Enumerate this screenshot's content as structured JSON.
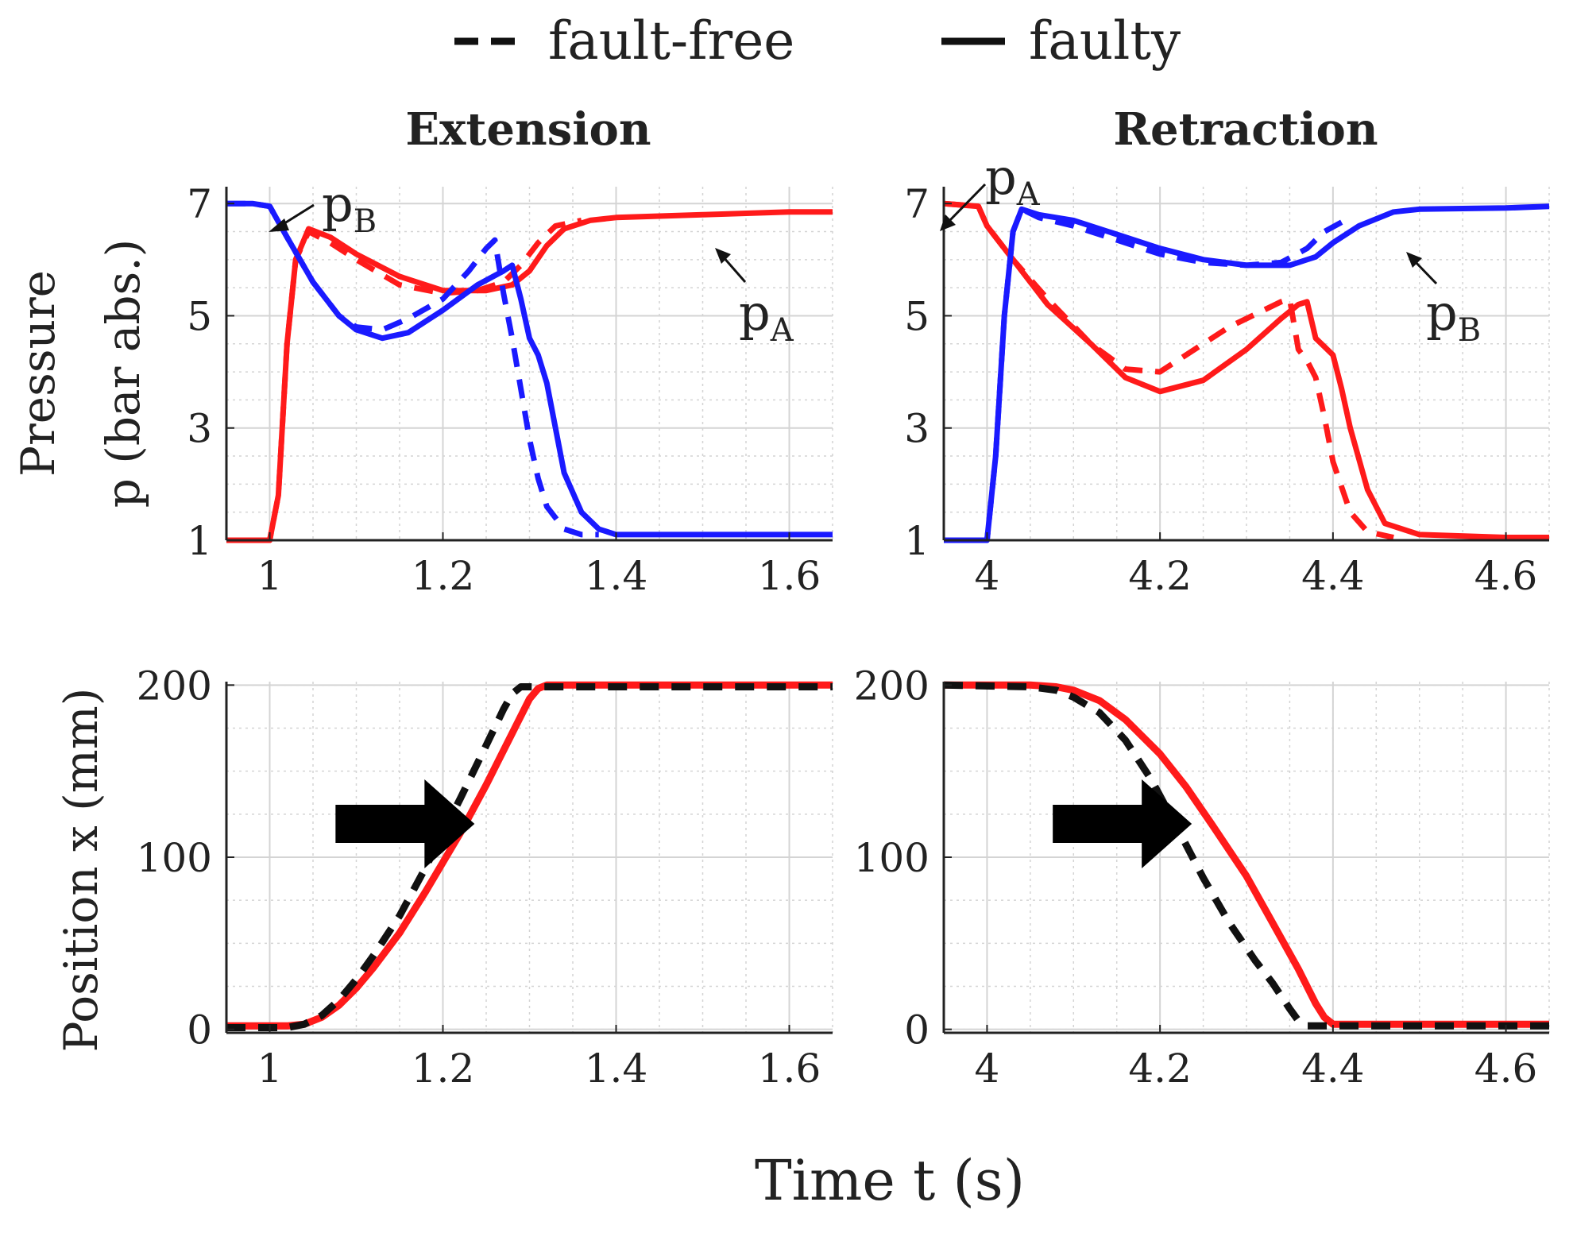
{
  "legend": {
    "dashed_label": "fault-free",
    "solid_label": "faulty"
  },
  "shared": {
    "xlabel": "Time t (s)"
  },
  "columns": [
    {
      "title": "Extension"
    },
    {
      "title": "Retraction"
    }
  ],
  "pressure_ylabel": {
    "line1": "Pressure",
    "line2": "p (bar abs.)"
  },
  "position_ylabel": "Position x (mm)",
  "annotations": {
    "ext_pB": {
      "main": "p",
      "sub": "B"
    },
    "ext_pA": {
      "main": "p",
      "sub": "A"
    },
    "ret_pA": {
      "main": "p",
      "sub": "A"
    },
    "ret_pB": {
      "main": "p",
      "sub": "B"
    }
  },
  "colors": {
    "pA": "#ff1a1a",
    "pB": "#1a1aff",
    "position_faulty": "#ff1a1a",
    "position_faultfree": "#111111",
    "grid": "#d4d4d4",
    "axis": "#222222"
  },
  "chart_data": [
    {
      "id": "ext_pressure",
      "type": "line",
      "title": "Extension",
      "xlabel": "",
      "ylabel": "Pressure p (bar abs.)",
      "xlim": [
        0.95,
        1.65
      ],
      "ylim": [
        1,
        7.3
      ],
      "xticks": [
        1,
        1.2,
        1.4,
        1.6
      ],
      "xtick_labels": [
        "1",
        "1.2",
        "1.4",
        "1.6"
      ],
      "yticks": [
        1,
        3,
        5,
        7
      ],
      "ytick_labels": [
        "1",
        "3",
        "5",
        "7"
      ],
      "series": [
        {
          "name": "pA faulty",
          "color_key": "pA",
          "style": "solid",
          "x": [
            0.95,
            1.0,
            1.01,
            1.02,
            1.03,
            1.045,
            1.07,
            1.1,
            1.15,
            1.2,
            1.25,
            1.28,
            1.3,
            1.32,
            1.34,
            1.37,
            1.4,
            1.5,
            1.6,
            1.65
          ],
          "y": [
            1.0,
            1.0,
            1.8,
            4.5,
            6.0,
            6.55,
            6.4,
            6.1,
            5.7,
            5.45,
            5.45,
            5.55,
            5.8,
            6.25,
            6.55,
            6.7,
            6.75,
            6.8,
            6.85,
            6.85
          ]
        },
        {
          "name": "pA fault-free",
          "color_key": "pA",
          "style": "dashed",
          "x": [
            0.95,
            1.0,
            1.01,
            1.02,
            1.03,
            1.045,
            1.07,
            1.1,
            1.15,
            1.2,
            1.24,
            1.27,
            1.29,
            1.31,
            1.33,
            1.36
          ],
          "y": [
            1.0,
            1.0,
            1.8,
            4.5,
            6.0,
            6.5,
            6.3,
            6.0,
            5.55,
            5.4,
            5.45,
            5.6,
            5.9,
            6.3,
            6.6,
            6.7
          ]
        },
        {
          "name": "pB faulty",
          "color_key": "pB",
          "style": "solid",
          "x": [
            0.95,
            0.98,
            1.0,
            1.02,
            1.05,
            1.08,
            1.1,
            1.13,
            1.16,
            1.2,
            1.24,
            1.27,
            1.28,
            1.29,
            1.3,
            1.31,
            1.32,
            1.33,
            1.34,
            1.36,
            1.38,
            1.4,
            1.5,
            1.65
          ],
          "y": [
            7.0,
            7.0,
            6.95,
            6.4,
            5.6,
            5.0,
            4.75,
            4.6,
            4.7,
            5.1,
            5.55,
            5.8,
            5.9,
            5.3,
            4.6,
            4.3,
            3.8,
            3.0,
            2.2,
            1.5,
            1.2,
            1.1,
            1.1,
            1.1
          ]
        },
        {
          "name": "pB fault-free",
          "color_key": "pB",
          "style": "dashed",
          "x": [
            0.95,
            0.98,
            1.0,
            1.02,
            1.05,
            1.08,
            1.1,
            1.13,
            1.16,
            1.2,
            1.23,
            1.25,
            1.26,
            1.27,
            1.28,
            1.29,
            1.3,
            1.31,
            1.32,
            1.34,
            1.36,
            1.38
          ],
          "y": [
            7.0,
            7.0,
            6.95,
            6.4,
            5.6,
            5.0,
            4.8,
            4.75,
            4.95,
            5.3,
            5.8,
            6.2,
            6.35,
            5.4,
            4.6,
            3.7,
            2.8,
            2.1,
            1.6,
            1.2,
            1.1,
            1.1
          ]
        }
      ]
    },
    {
      "id": "ret_pressure",
      "type": "line",
      "title": "Retraction",
      "xlabel": "",
      "ylabel": "",
      "xlim": [
        3.95,
        4.65
      ],
      "ylim": [
        1,
        7.3
      ],
      "xticks": [
        4,
        4.2,
        4.4,
        4.6
      ],
      "xtick_labels": [
        "4",
        "4.2",
        "4.4",
        "4.6"
      ],
      "yticks": [
        1,
        3,
        5,
        7
      ],
      "ytick_labels": [
        "1",
        "3",
        "5",
        "7"
      ],
      "series": [
        {
          "name": "pA faulty",
          "color_key": "pA",
          "style": "solid",
          "x": [
            3.95,
            3.99,
            4.0,
            4.03,
            4.07,
            4.12,
            4.16,
            4.2,
            4.25,
            4.3,
            4.34,
            4.36,
            4.37,
            4.38,
            4.39,
            4.4,
            4.41,
            4.42,
            4.44,
            4.46,
            4.5,
            4.6,
            4.65
          ],
          "y": [
            7.0,
            6.95,
            6.6,
            6.0,
            5.2,
            4.5,
            3.9,
            3.65,
            3.85,
            4.4,
            4.95,
            5.2,
            5.25,
            4.6,
            4.45,
            4.3,
            3.7,
            3.0,
            1.9,
            1.3,
            1.1,
            1.05,
            1.05
          ]
        },
        {
          "name": "pA fault-free",
          "color_key": "pA",
          "style": "dashed",
          "x": [
            3.95,
            3.99,
            4.0,
            4.03,
            4.07,
            4.12,
            4.16,
            4.2,
            4.24,
            4.28,
            4.32,
            4.34,
            4.35,
            4.36,
            4.37,
            4.38,
            4.39,
            4.4,
            4.42,
            4.44,
            4.47
          ],
          "y": [
            7.0,
            6.95,
            6.6,
            6.0,
            5.3,
            4.5,
            4.05,
            4.0,
            4.4,
            4.8,
            5.1,
            5.25,
            5.3,
            4.4,
            4.2,
            3.9,
            3.2,
            2.4,
            1.5,
            1.15,
            1.05
          ]
        },
        {
          "name": "pB faulty",
          "color_key": "pB",
          "style": "solid",
          "x": [
            3.95,
            4.0,
            4.01,
            4.02,
            4.03,
            4.04,
            4.06,
            4.1,
            4.15,
            4.2,
            4.25,
            4.3,
            4.35,
            4.38,
            4.4,
            4.43,
            4.47,
            4.5,
            4.6,
            4.65
          ],
          "y": [
            1.0,
            1.0,
            2.5,
            5.0,
            6.5,
            6.9,
            6.8,
            6.7,
            6.45,
            6.2,
            6.0,
            5.9,
            5.9,
            6.05,
            6.3,
            6.6,
            6.85,
            6.9,
            6.92,
            6.95
          ]
        },
        {
          "name": "pB fault-free",
          "color_key": "pB",
          "style": "dashed",
          "x": [
            3.95,
            4.0,
            4.01,
            4.02,
            4.03,
            4.04,
            4.06,
            4.1,
            4.15,
            4.2,
            4.25,
            4.3,
            4.34,
            4.37,
            4.39,
            4.42
          ],
          "y": [
            1.0,
            1.0,
            2.5,
            5.0,
            6.5,
            6.9,
            6.75,
            6.6,
            6.35,
            6.1,
            5.95,
            5.9,
            5.95,
            6.2,
            6.5,
            6.75
          ]
        }
      ]
    },
    {
      "id": "ext_position",
      "type": "line",
      "title": "",
      "xlabel": "Time t (s)",
      "ylabel": "Position x (mm)",
      "xlim": [
        0.95,
        1.65
      ],
      "ylim": [
        -2,
        202
      ],
      "xticks": [
        1,
        1.2,
        1.4,
        1.6
      ],
      "xtick_labels": [
        "1",
        "1.2",
        "1.4",
        "1.6"
      ],
      "yticks": [
        0,
        100,
        200
      ],
      "ytick_labels": [
        "0",
        "100",
        "200"
      ],
      "direction_arrow": "right",
      "series": [
        {
          "name": "x faulty",
          "color_key": "position_faulty",
          "style": "solid",
          "x": [
            0.95,
            1.02,
            1.04,
            1.06,
            1.08,
            1.1,
            1.12,
            1.15,
            1.18,
            1.2,
            1.22,
            1.25,
            1.28,
            1.3,
            1.31,
            1.32,
            1.4,
            1.5,
            1.65
          ],
          "y": [
            2,
            2,
            3,
            7,
            14,
            24,
            36,
            56,
            80,
            97,
            114,
            142,
            172,
            192,
            198,
            200,
            200,
            200,
            200
          ]
        },
        {
          "name": "x fault-free",
          "color_key": "position_faultfree",
          "style": "dashed",
          "x": [
            0.95,
            1.02,
            1.04,
            1.06,
            1.08,
            1.1,
            1.12,
            1.15,
            1.18,
            1.2,
            1.22,
            1.25,
            1.27,
            1.28,
            1.29,
            1.35,
            1.5,
            1.65
          ],
          "y": [
            1,
            1,
            3,
            8,
            17,
            29,
            43,
            66,
            94,
            114,
            134,
            165,
            186,
            195,
            199,
            199,
            199,
            199
          ]
        }
      ]
    },
    {
      "id": "ret_position",
      "type": "line",
      "title": "",
      "xlabel": "Time t (s)",
      "ylabel": "",
      "xlim": [
        3.95,
        4.65
      ],
      "ylim": [
        -2,
        202
      ],
      "xticks": [
        4,
        4.2,
        4.4,
        4.6
      ],
      "xtick_labels": [
        "4",
        "4.2",
        "4.4",
        "4.6"
      ],
      "yticks": [
        0,
        100,
        200
      ],
      "ytick_labels": [
        "0",
        "100",
        "200"
      ],
      "direction_arrow": "right",
      "series": [
        {
          "name": "x faulty",
          "color_key": "position_faulty",
          "style": "solid",
          "x": [
            3.95,
            4.05,
            4.08,
            4.1,
            4.13,
            4.16,
            4.2,
            4.23,
            4.26,
            4.3,
            4.33,
            4.36,
            4.38,
            4.39,
            4.4,
            4.5,
            4.65
          ],
          "y": [
            200,
            200,
            199,
            197,
            191,
            180,
            160,
            141,
            119,
            89,
            62,
            35,
            15,
            7,
            3,
            3,
            3
          ]
        },
        {
          "name": "x fault-free",
          "color_key": "position_faultfree",
          "style": "dashed",
          "x": [
            3.95,
            4.05,
            4.08,
            4.1,
            4.13,
            4.16,
            4.19,
            4.22,
            4.25,
            4.28,
            4.31,
            4.33,
            4.35,
            4.36,
            4.37,
            4.38,
            4.5,
            4.65
          ],
          "y": [
            200,
            199,
            197,
            193,
            184,
            168,
            145,
            117,
            88,
            62,
            40,
            27,
            12,
            5,
            2,
            2,
            2,
            2
          ]
        }
      ]
    }
  ]
}
